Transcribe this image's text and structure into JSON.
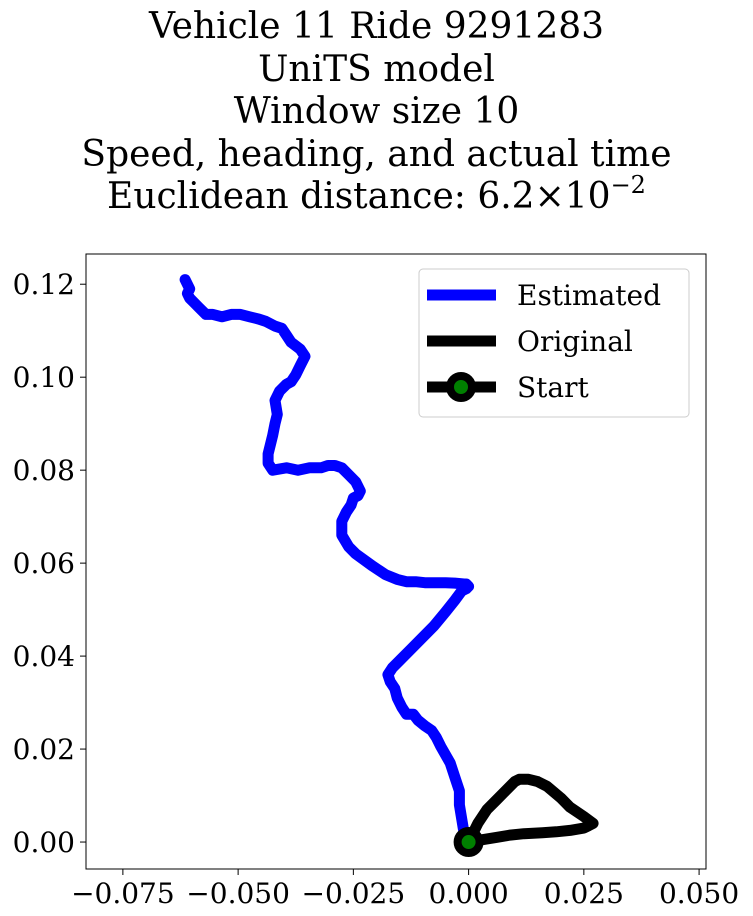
{
  "chart_data": {
    "type": "line",
    "title_lines": [
      "Vehicle 11 Ride 9291283",
      "UniTS model",
      "Window size 10",
      "Speed, heading, and actual time"
    ],
    "title_metric_prefix": "Euclidean distance: 6.2×10",
    "title_metric_exponent": "−2",
    "xlim": [
      -0.083,
      0.0515
    ],
    "ylim": [
      -0.0058,
      0.1265
    ],
    "x_ticks": [
      -0.075,
      -0.05,
      -0.025,
      0.0,
      0.025,
      0.05
    ],
    "x_tick_labels": [
      "−0.075",
      "−0.050",
      "−0.025",
      "0.000",
      "0.025",
      "0.050"
    ],
    "y_ticks": [
      0.0,
      0.02,
      0.04,
      0.06,
      0.08,
      0.1,
      0.12
    ],
    "y_tick_labels": [
      "0.00",
      "0.02",
      "0.04",
      "0.06",
      "0.08",
      "0.10",
      "0.12"
    ],
    "grid": false,
    "legend_position": "top-right",
    "series": [
      {
        "name": "Estimated",
        "color": "#0000ff",
        "x": [
          0.0,
          -0.001,
          -0.0015,
          -0.002,
          -0.002,
          -0.003,
          -0.004,
          -0.006,
          -0.007,
          -0.008,
          -0.0095,
          -0.011,
          -0.012,
          -0.0135,
          -0.0145,
          -0.0155,
          -0.016,
          -0.017,
          -0.0175,
          -0.0165,
          -0.015,
          -0.0125,
          -0.01,
          -0.0075,
          -0.005,
          -0.003,
          -0.0015,
          -0.0005,
          0.0,
          -0.0005,
          -0.001,
          -0.003,
          -0.005,
          -0.0075,
          -0.0095,
          -0.0115,
          -0.0135,
          -0.0155,
          -0.018,
          -0.021,
          -0.0245,
          -0.026,
          -0.0275,
          -0.0275,
          -0.0265,
          -0.0255,
          -0.025,
          -0.024,
          -0.0235,
          -0.0245,
          -0.026,
          -0.0275,
          -0.029,
          -0.0305,
          -0.032,
          -0.0345,
          -0.037,
          -0.0395,
          -0.0425,
          -0.0435,
          -0.0435,
          -0.0425,
          -0.042,
          -0.0415,
          -0.042,
          -0.041,
          -0.0395,
          -0.0385,
          -0.0375,
          -0.0365,
          -0.0355,
          -0.0365,
          -0.0385,
          -0.0395,
          -0.0405,
          -0.042,
          -0.044,
          -0.0455,
          -0.0475,
          -0.0495,
          -0.0515,
          -0.0535,
          -0.0555,
          -0.057,
          -0.0585,
          -0.0595,
          -0.0605,
          -0.061,
          -0.0605,
          -0.0615
        ],
        "y": [
          0.0,
          0.002,
          0.005,
          0.008,
          0.011,
          0.014,
          0.017,
          0.0205,
          0.0225,
          0.024,
          0.025,
          0.0262,
          0.0275,
          0.0275,
          0.029,
          0.031,
          0.033,
          0.0345,
          0.036,
          0.0375,
          0.039,
          0.0415,
          0.044,
          0.0465,
          0.0495,
          0.052,
          0.054,
          0.0545,
          0.055,
          0.0555,
          0.0555,
          0.0557,
          0.0558,
          0.0558,
          0.0558,
          0.056,
          0.056,
          0.0565,
          0.0575,
          0.0595,
          0.062,
          0.0635,
          0.066,
          0.069,
          0.071,
          0.0725,
          0.074,
          0.0745,
          0.0755,
          0.0775,
          0.079,
          0.0805,
          0.081,
          0.081,
          0.0805,
          0.0805,
          0.08,
          0.0805,
          0.08,
          0.0815,
          0.0835,
          0.0875,
          0.09,
          0.092,
          0.095,
          0.097,
          0.0985,
          0.099,
          0.1005,
          0.1025,
          0.1045,
          0.106,
          0.1075,
          0.109,
          0.1105,
          0.111,
          0.112,
          0.1125,
          0.113,
          0.1135,
          0.1135,
          0.113,
          0.1135,
          0.1135,
          0.115,
          0.116,
          0.117,
          0.118,
          0.119,
          0.121
        ]
      },
      {
        "name": "Original",
        "color": "#000000",
        "x": [
          0.0,
          0.002,
          0.004,
          0.006,
          0.008,
          0.01,
          0.011,
          0.013,
          0.015,
          0.017,
          0.02,
          0.022,
          0.025,
          0.027,
          0.026,
          0.025,
          0.022,
          0.019,
          0.016,
          0.012,
          0.009,
          0.006,
          0.003,
          0.0
        ],
        "y": [
          0.0,
          0.004,
          0.007,
          0.009,
          0.011,
          0.013,
          0.0135,
          0.0135,
          0.013,
          0.012,
          0.0095,
          0.0075,
          0.0055,
          0.004,
          0.0035,
          0.003,
          0.0025,
          0.0022,
          0.002,
          0.0018,
          0.0015,
          0.001,
          0.0005,
          0.0
        ]
      }
    ],
    "start": {
      "name": "Start",
      "x": 0.0,
      "y": 0.0,
      "face_color": "#008000",
      "edge_color": "#000000"
    }
  }
}
